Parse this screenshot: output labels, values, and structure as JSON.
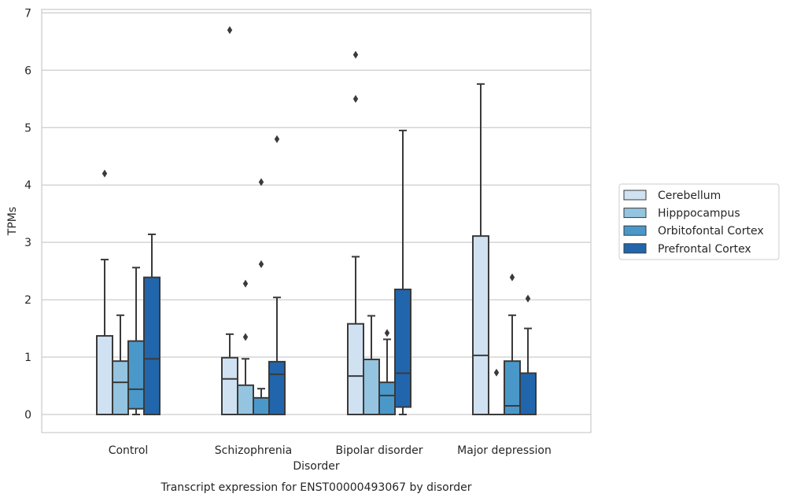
{
  "chart_data": {
    "type": "boxplot",
    "xlabel": "Disorder",
    "ylabel": "TPMs",
    "caption": "Transcript expression for ENST00000493067 by disorder",
    "ylim": [
      -0.32,
      7.05
    ],
    "yticks": [
      0,
      1,
      2,
      3,
      4,
      5,
      6,
      7
    ],
    "grid": "horizontal",
    "legend_position": "right",
    "categories": [
      "Control",
      "Schizophrenia",
      "Bipolar disorder",
      "Major depression"
    ],
    "series": [
      {
        "name": "Cerebellum",
        "color": "#d0e1f2",
        "boxes": [
          {
            "whislo": 0,
            "q1": 0,
            "med": 0,
            "q3": 1.37,
            "whishi": 2.7,
            "fliers": [
              4.2
            ]
          },
          {
            "whislo": 0,
            "q1": 0,
            "med": 0.62,
            "q3": 0.99,
            "whishi": 1.4,
            "fliers": [
              6.7
            ]
          },
          {
            "whislo": 0,
            "q1": 0,
            "med": 0.67,
            "q3": 1.58,
            "whishi": 2.75,
            "fliers": [
              5.5,
              6.27
            ]
          },
          {
            "whislo": 0,
            "q1": 0,
            "med": 1.03,
            "q3": 3.11,
            "whishi": 5.76,
            "fliers": []
          }
        ]
      },
      {
        "name": "Hipppocampus",
        "color": "#94c4df",
        "boxes": [
          {
            "whislo": 0,
            "q1": 0,
            "med": 0.56,
            "q3": 0.93,
            "whishi": 1.73,
            "fliers": []
          },
          {
            "whislo": 0,
            "q1": 0,
            "med": 0,
            "q3": 0.51,
            "whishi": 0.97,
            "fliers": [
              1.35,
              2.28
            ]
          },
          {
            "whislo": 0,
            "q1": 0,
            "med": 0,
            "q3": 0.96,
            "whishi": 1.72,
            "fliers": []
          },
          {
            "whislo": 0,
            "q1": 0,
            "med": 0,
            "q3": 0,
            "whishi": 0,
            "fliers": [
              0.73
            ]
          }
        ]
      },
      {
        "name": "Orbitofontal Cortex",
        "color": "#4a98c9",
        "boxes": [
          {
            "whislo": 0,
            "q1": 0.1,
            "med": 0.44,
            "q3": 1.28,
            "whishi": 2.56,
            "fliers": []
          },
          {
            "whislo": 0,
            "q1": 0,
            "med": 0,
            "q3": 0.29,
            "whishi": 0.45,
            "fliers": [
              2.62,
              4.05
            ]
          },
          {
            "whislo": 0,
            "q1": 0,
            "med": 0.33,
            "q3": 0.56,
            "whishi": 1.31,
            "fliers": [
              1.42
            ]
          },
          {
            "whislo": 0,
            "q1": 0,
            "med": 0.15,
            "q3": 0.93,
            "whishi": 1.73,
            "fliers": [
              2.39
            ]
          }
        ]
      },
      {
        "name": "Prefrontal Cortex",
        "color": "#2166ac",
        "boxes": [
          {
            "whislo": 0,
            "q1": 0,
            "med": 0.97,
            "q3": 2.39,
            "whishi": 3.14,
            "fliers": []
          },
          {
            "whislo": 0,
            "q1": 0,
            "med": 0.7,
            "q3": 0.92,
            "whishi": 2.04,
            "fliers": [
              4.8
            ]
          },
          {
            "whislo": 0,
            "q1": 0.13,
            "med": 0.72,
            "q3": 2.18,
            "whishi": 4.95,
            "fliers": []
          },
          {
            "whislo": 0,
            "q1": 0,
            "med": 0,
            "q3": 0.72,
            "whishi": 1.5,
            "fliers": [
              2.02
            ]
          }
        ]
      }
    ]
  }
}
